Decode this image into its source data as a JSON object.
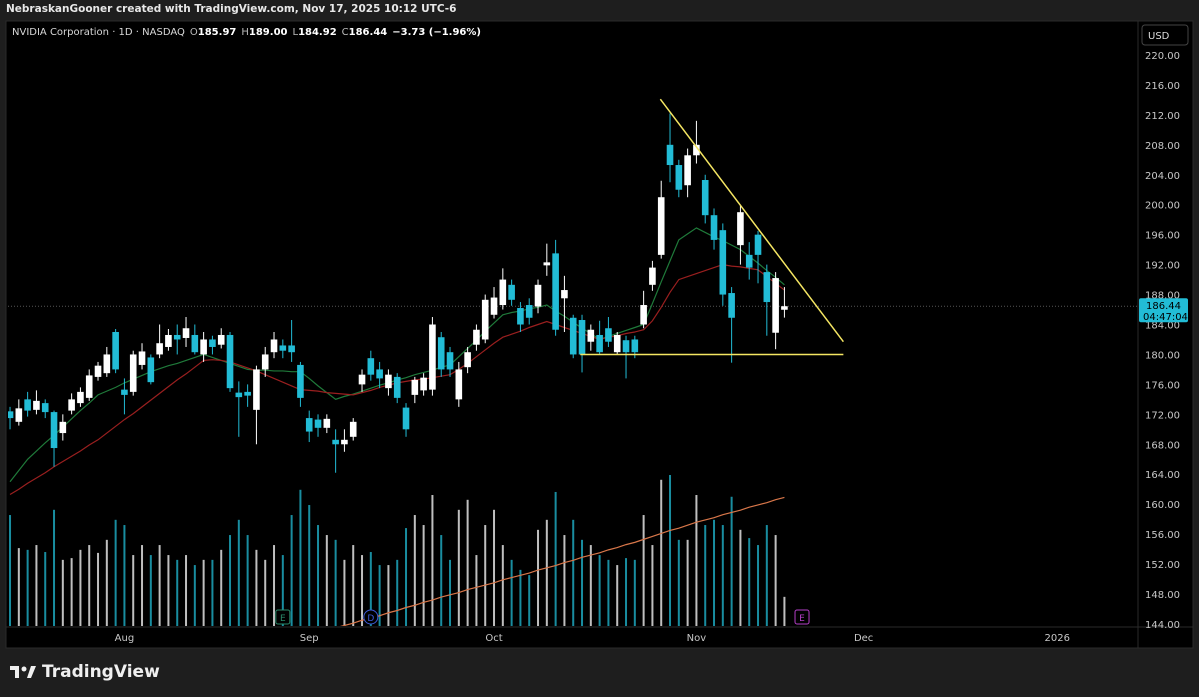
{
  "header": "NebraskanGooner created with TradingView.com, Nov 17, 2025 10:12 UTC-6",
  "footer": {
    "logo": "TradingView"
  },
  "chart_data": {
    "type": "candlestick",
    "symbol": "NVIDIA Corporation · 1D · NASDAQ",
    "legend_items": [
      {
        "key": "O",
        "value": "185.97"
      },
      {
        "key": "H",
        "value": "189.00"
      },
      {
        "key": "L",
        "value": "184.92"
      },
      {
        "key": "C",
        "value": "186.44"
      }
    ],
    "change": "−3.73 (−1.96%)",
    "currency": "USD",
    "up_color": "#ffffff",
    "down_color": "#22bcd6",
    "open": [
      172.4,
      171,
      174,
      172.6,
      173.5,
      172.3,
      169.5,
      172.5,
      173.5,
      174.2,
      177,
      177.5,
      183,
      175.3,
      175,
      178.6,
      179.6,
      180,
      181,
      182.6,
      182.2,
      182.6,
      180,
      182,
      181.3,
      182.6,
      174.9,
      175,
      172.6,
      178,
      180.3,
      181.2,
      181.2,
      178.6,
      171.5,
      171.3,
      170.2,
      168.6,
      168,
      169,
      176,
      179.5,
      178,
      175.5,
      177,
      172.9,
      174.6,
      175.2,
      175.3,
      182.3,
      180.3,
      174,
      178.3,
      181.3,
      182,
      185.3,
      186.6,
      189.3,
      186.2,
      186.6,
      186.4,
      191.9,
      193.5,
      187.5,
      184.9,
      184.6,
      181.7,
      182.6,
      183.5,
      180.3,
      181.9,
      182,
      184,
      189.3,
      193.3,
      208,
      205.3,
      202.6,
      206.6,
      203.3,
      198.6,
      196.6,
      188.2,
      194.6,
      193.3,
      196,
      191,
      182.9,
      185.97
    ],
    "high": [
      173,
      174,
      175,
      175.2,
      174,
      172.5,
      172,
      174.8,
      175.6,
      178,
      179,
      181,
      183.4,
      176.8,
      180.5,
      181.5,
      180,
      184,
      183.4,
      184,
      185,
      184,
      183,
      182.5,
      183.5,
      183,
      176.4,
      176,
      178.5,
      181,
      183,
      182,
      184.6,
      179,
      172.5,
      172,
      172,
      170,
      170,
      171.5,
      178,
      180.5,
      179,
      178,
      177.5,
      173.5,
      177,
      177.5,
      185,
      183,
      181,
      179,
      181,
      184,
      188,
      189,
      191.5,
      190,
      187,
      187.5,
      190,
      194.8,
      195.3,
      190.5,
      185.3,
      185.3,
      184,
      184.5,
      185,
      183,
      182.5,
      182.5,
      188.5,
      192.5,
      203.2,
      212.2,
      206,
      207.5,
      211.2,
      204,
      199.5,
      197.5,
      189,
      200,
      195,
      196.5,
      192,
      191,
      189
    ],
    "low": [
      170,
      170.5,
      171.7,
      172,
      171.5,
      165,
      168.5,
      172,
      173,
      173.8,
      176.5,
      177,
      177.5,
      172,
      174.5,
      178,
      176,
      179.5,
      180.5,
      180,
      181,
      180,
      179,
      180,
      180.8,
      175,
      169,
      173,
      168,
      177,
      179.5,
      179.5,
      179,
      173,
      168.3,
      169,
      169.5,
      164.2,
      167,
      168.5,
      175,
      176.5,
      175.5,
      174.5,
      173.5,
      169,
      173.5,
      174.5,
      174.5,
      177,
      177,
      173,
      177.5,
      180.5,
      181.5,
      184.8,
      186,
      186.5,
      183,
      184,
      185.5,
      190.5,
      182.5,
      183,
      179.5,
      177.6,
      180.5,
      180,
      181,
      180,
      176.8,
      179.5,
      183.5,
      188.5,
      192.8,
      203,
      201,
      201,
      205.5,
      197.5,
      194,
      186.5,
      178.9,
      192,
      190,
      189.5,
      182.5,
      180.7,
      184.92
    ],
    "close": [
      171.5,
      172.8,
      172.5,
      173.8,
      172.3,
      167.5,
      171,
      174,
      175,
      177.2,
      178.5,
      180,
      178,
      174.6,
      180,
      180.4,
      176.3,
      181.5,
      182.6,
      182,
      183.5,
      180.3,
      182,
      181,
      182.6,
      175.5,
      174.3,
      174.5,
      178,
      180,
      182,
      180.5,
      180.3,
      174.2,
      169.7,
      170.2,
      171.4,
      168,
      168.6,
      171,
      177.3,
      177.3,
      176.8,
      177.3,
      174.2,
      170,
      176.6,
      176.9,
      184,
      178,
      178,
      178,
      180.3,
      183.3,
      187.3,
      187.6,
      190,
      187.3,
      184,
      184.9,
      189.3,
      192.3,
      183.3,
      188.6,
      180,
      180,
      183.3,
      180.3,
      181.7,
      182.6,
      180.3,
      180.3,
      186.6,
      191.6,
      201,
      205.3,
      202,
      206.6,
      208,
      198.6,
      195.3,
      188,
      184.9,
      199,
      191.6,
      193.3,
      187,
      190.2,
      186.44
    ],
    "volume": [
      255,
      179,
      175,
      186,
      170,
      267,
      152,
      156,
      175,
      186,
      168,
      198,
      244,
      232,
      163,
      186,
      163,
      186,
      163,
      152,
      163,
      140,
      152,
      152,
      175,
      209,
      244,
      209,
      175,
      152,
      186,
      163,
      255,
      313,
      278,
      232,
      209,
      198,
      152,
      186,
      163,
      170,
      140,
      140,
      152,
      225,
      255,
      232,
      301,
      209,
      152,
      267,
      290,
      163,
      232,
      267,
      186,
      152,
      129,
      117,
      221,
      244,
      308,
      209,
      244,
      198,
      186,
      163,
      152,
      140,
      156,
      152,
      255,
      186,
      336,
      347,
      198,
      198,
      301,
      232,
      244,
      232,
      297,
      221,
      202,
      186,
      232,
      209,
      67
    ],
    "lines": [
      {
        "color": "#1f7a3a",
        "values": [
          163,
          164.5,
          166,
          167.1,
          168.2,
          169.2,
          170.3,
          171.4,
          172.5,
          173.5,
          174.6,
          175.1,
          175.6,
          176.2,
          176.7,
          177.2,
          177.7,
          178.1,
          178.5,
          178.8,
          179.2,
          179.6,
          180,
          179.6,
          179.2,
          178.8,
          178.4,
          178,
          177.9,
          177.9,
          177.8,
          177.8,
          177.7,
          177.7,
          176.8,
          175.8,
          174.9,
          174,
          174.4,
          174.7,
          175.1,
          175.5,
          175.9,
          176.2,
          176.6,
          176.9,
          177.3,
          177.6,
          177.9,
          178.3,
          178.6,
          179.7,
          180.8,
          181.9,
          183.1,
          184.2,
          185.3,
          185.6,
          185.8,
          186.1,
          186.3,
          186.6,
          185.8,
          185.1,
          184.3,
          183.5,
          182.8,
          182,
          182.4,
          182.8,
          183.2,
          183.6,
          184,
          186.8,
          189.7,
          192.5,
          195.3,
          196.1,
          196.9,
          196.3,
          195.7,
          195.2,
          194.6,
          194,
          193.1,
          192.2,
          191.2,
          190.3,
          189.3
        ]
      },
      {
        "color": "#9a1f1f",
        "values": [
          161.3,
          162,
          162.8,
          163.5,
          164.2,
          165,
          165.7,
          166.4,
          167.1,
          167.9,
          168.6,
          169.5,
          170.4,
          171.3,
          172.1,
          173,
          173.9,
          174.8,
          175.7,
          176.6,
          177.4,
          178.3,
          179.2,
          179.3,
          179.2,
          179,
          178.6,
          178.2,
          177.8,
          177.3,
          176.8,
          176.3,
          175.8,
          175.3,
          175.2,
          175.1,
          174.9,
          174.8,
          174.7,
          174.6,
          174.9,
          175.2,
          175.6,
          175.9,
          176.2,
          176.4,
          176.6,
          176.7,
          176.9,
          177.1,
          177.3,
          178,
          178.8,
          179.7,
          180.6,
          181.5,
          182.3,
          182.7,
          183.1,
          183.6,
          184,
          184.4,
          184,
          183.6,
          183.2,
          182.8,
          182.4,
          182,
          182.3,
          182.5,
          182.8,
          183,
          183.3,
          184.5,
          186.3,
          188.3,
          190,
          190.4,
          190.8,
          191.2,
          191.6,
          192,
          191.8,
          191.7,
          191.5,
          191.3,
          190.4,
          189.5,
          188.6
        ]
      },
      {
        "color": "#d9774a",
        "values": [
          null,
          null,
          null,
          null,
          null,
          null,
          null,
          null,
          null,
          null,
          null,
          null,
          null,
          null,
          null,
          null,
          null,
          null,
          null,
          null,
          null,
          null,
          null,
          null,
          null,
          null,
          null,
          null,
          null,
          null,
          null,
          null,
          null,
          null,
          null,
          null,
          null,
          143.5,
          143.8,
          144.1,
          144.5,
          144.8,
          145.1,
          145.5,
          145.8,
          146.2,
          146.5,
          146.9,
          147.2,
          147.6,
          147.9,
          148.2,
          148.6,
          148.9,
          149.2,
          149.5,
          149.9,
          150.2,
          150.5,
          150.8,
          151.2,
          151.5,
          151.8,
          152.2,
          152.5,
          152.9,
          153.2,
          153.5,
          153.9,
          154.2,
          154.6,
          154.9,
          155.3,
          155.7,
          156.1,
          156.5,
          156.8,
          157.2,
          157.6,
          157.9,
          158.2,
          158.6,
          158.9,
          159.2,
          159.6,
          159.9,
          160.2,
          160.6,
          160.9
        ]
      }
    ],
    "trendlines": [
      {
        "color": "#f5e663",
        "x": [
          73.9,
          94.7
        ],
        "y": [
          214.1,
          181.7
        ]
      },
      {
        "color": "#f5e663",
        "x": [
          64.8,
          94.7
        ],
        "y": [
          180,
          180
        ]
      }
    ],
    "last_price": 186.44,
    "countdown": "04:47:04",
    "events": [
      {
        "index": 31,
        "label": "E",
        "color": "#2a8a6a"
      },
      {
        "index": 41,
        "label": "D",
        "color": "#3d5bd9"
      },
      {
        "index": 90,
        "label": "E",
        "color": "#b43fc7"
      }
    ],
    "xlim": [
      -0.23,
      128.18
    ],
    "xticks": [
      {
        "value": 13,
        "label": "Aug"
      },
      {
        "value": 34,
        "label": "Sep"
      },
      {
        "value": 55,
        "label": "Oct"
      },
      {
        "value": 78,
        "label": "Nov"
      },
      {
        "value": 97,
        "label": "Dec"
      },
      {
        "value": 119,
        "label": "2026"
      }
    ],
    "ylim": [
      143.73,
      224.27
    ],
    "yticks": [
      {
        "value": 144,
        "label": "144.00"
      },
      {
        "value": 148,
        "label": "148.00"
      },
      {
        "value": 152,
        "label": "152.00"
      },
      {
        "value": 156,
        "label": "156.00"
      },
      {
        "value": 160,
        "label": "160.00"
      },
      {
        "value": 164,
        "label": "164.00"
      },
      {
        "value": 168,
        "label": "168.00"
      },
      {
        "value": 172,
        "label": "172.00"
      },
      {
        "value": 176,
        "label": "176.00"
      },
      {
        "value": 180,
        "label": "180.00"
      },
      {
        "value": 184,
        "label": "184.00"
      },
      {
        "value": 188,
        "label": "188.00"
      },
      {
        "value": 192,
        "label": "192.00"
      },
      {
        "value": 196,
        "label": "196.00"
      },
      {
        "value": 200,
        "label": "200.00"
      },
      {
        "value": 204,
        "label": "204.00"
      },
      {
        "value": 208,
        "label": "208.00"
      },
      {
        "value": 212,
        "label": "212.00"
      },
      {
        "value": 216,
        "label": "216.00"
      },
      {
        "value": 220,
        "label": "220.00"
      }
    ]
  }
}
